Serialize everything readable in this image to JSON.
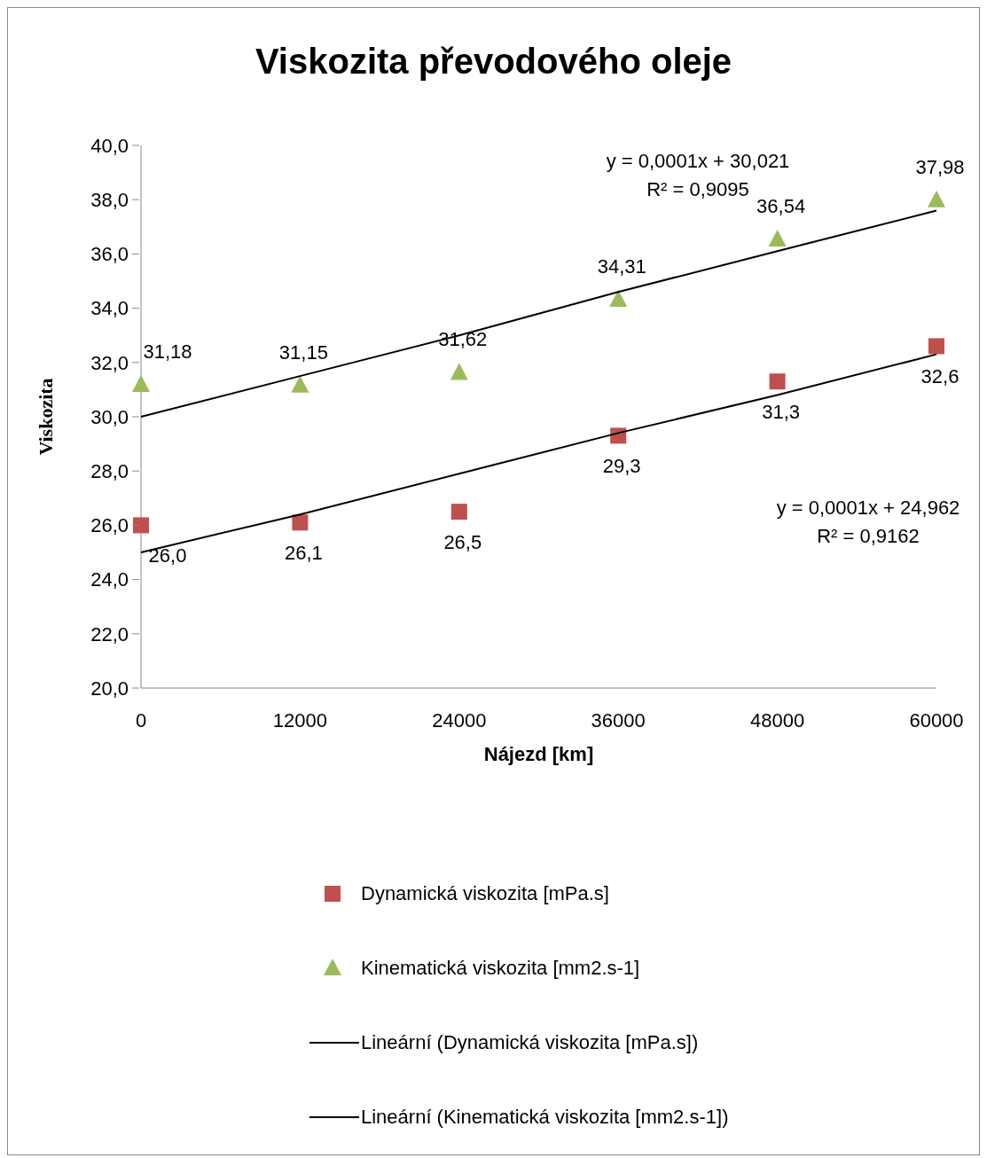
{
  "chart_data": {
    "type": "scatter",
    "title": "Viskozita převodového oleje",
    "xlabel": "Nájezd [km]",
    "ylabel": "Viskozita",
    "x": [
      0,
      12000,
      24000,
      36000,
      48000,
      60000
    ],
    "xlim": [
      0,
      60000
    ],
    "xticks": [
      0,
      12000,
      24000,
      36000,
      48000,
      60000
    ],
    "ylim": [
      20,
      40
    ],
    "yticks": [
      {
        "value": 20,
        "label": "20,0"
      },
      {
        "value": 22,
        "label": "22,0"
      },
      {
        "value": 24,
        "label": "24,0"
      },
      {
        "value": 26,
        "label": "26,0"
      },
      {
        "value": 28,
        "label": "28,0"
      },
      {
        "value": 30,
        "label": "30,0"
      },
      {
        "value": 32,
        "label": "32,0"
      },
      {
        "value": 34,
        "label": "34,0"
      },
      {
        "value": 36,
        "label": "36,0"
      },
      {
        "value": 38,
        "label": "38,0"
      },
      {
        "value": 40,
        "label": "40,0"
      }
    ],
    "grid": false,
    "legend": "bottom",
    "series": [
      {
        "name": "Dynamická viskozita [mPa.s]",
        "marker": "square",
        "color": "#c0504d",
        "values": [
          26.0,
          26.1,
          26.5,
          29.3,
          31.3,
          32.6
        ],
        "value_labels": [
          "26,0",
          "26,1",
          "26,5",
          "29,3",
          "31,3",
          "32,6"
        ]
      },
      {
        "name": "Kinematická viskozita [mm2.s-1]",
        "marker": "triangle",
        "color": "#9bbb59",
        "values": [
          31.18,
          31.15,
          31.62,
          34.31,
          36.54,
          37.98
        ],
        "value_labels": [
          "31,18",
          "31,15",
          "31,62",
          "34,31",
          "36,54",
          "37,98"
        ]
      },
      {
        "name": "Lineární (Dynamická viskozita [mPa.s])",
        "type": "line",
        "marker": "none",
        "color": "#000000",
        "values": [
          25.0,
          26.4,
          27.9,
          29.4,
          30.8,
          32.3
        ]
      },
      {
        "name": "Lineární (Kinematická viskozita [mm2.s-1])",
        "type": "line",
        "marker": "none",
        "color": "#000000",
        "values": [
          30.0,
          31.5,
          33.0,
          34.6,
          36.1,
          37.6
        ]
      }
    ],
    "annotations": [
      "y = 0,0001x + 24,962\nR² = 0,9162",
      "y = 0,0001x + 30,021\nR² = 0,9095"
    ]
  }
}
